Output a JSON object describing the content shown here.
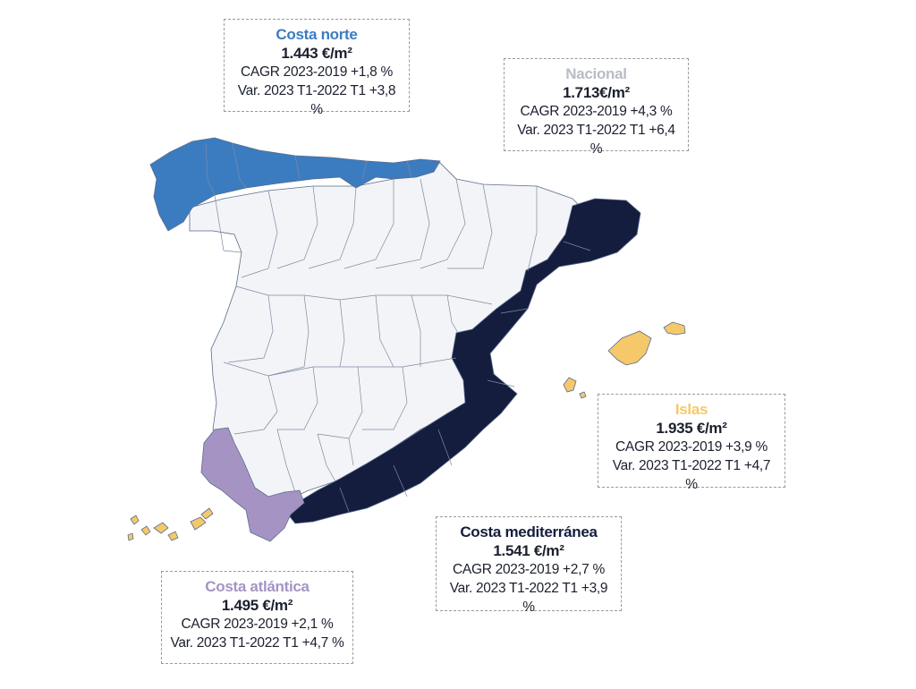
{
  "colors": {
    "costa_norte": "#3b7cc0",
    "nacional": "#b8bcc4",
    "interior": "#f3f4f7",
    "costa_mediterranea": "#141d3d",
    "costa_atlantica": "#a594c3",
    "islas": "#f5c86a"
  },
  "regions": {
    "costa_norte": {
      "title": "Costa norte",
      "price": "1.443 €/m²",
      "cagr": "CAGR 2023-2019 +1,8 %",
      "var": "Var. 2023 T1-2022 T1 +3,8 %"
    },
    "nacional": {
      "title": "Nacional",
      "price": "1.713€/m²",
      "cagr": "CAGR 2023-2019 +4,3 %",
      "var": "Var. 2023 T1-2022 T1 +6,4 %"
    },
    "islas": {
      "title": "Islas",
      "price": "1.935 €/m²",
      "cagr": "CAGR 2023-2019 +3,9 %",
      "var": "Var. 2023 T1-2022 T1 +4,7 %"
    },
    "costa_mediterranea": {
      "title": "Costa mediterránea",
      "price": "1.541 €/m²",
      "cagr": "CAGR 2023-2019 +2,7 %",
      "var": "Var. 2023 T1-2022 T1 +3,9 %"
    },
    "costa_atlantica": {
      "title": "Costa atlántica",
      "price": "1.495 €/m²",
      "cagr": "CAGR 2023-2019 +2,1 %",
      "var": "Var. 2023 T1-2022 T1 +4,7 %"
    }
  }
}
